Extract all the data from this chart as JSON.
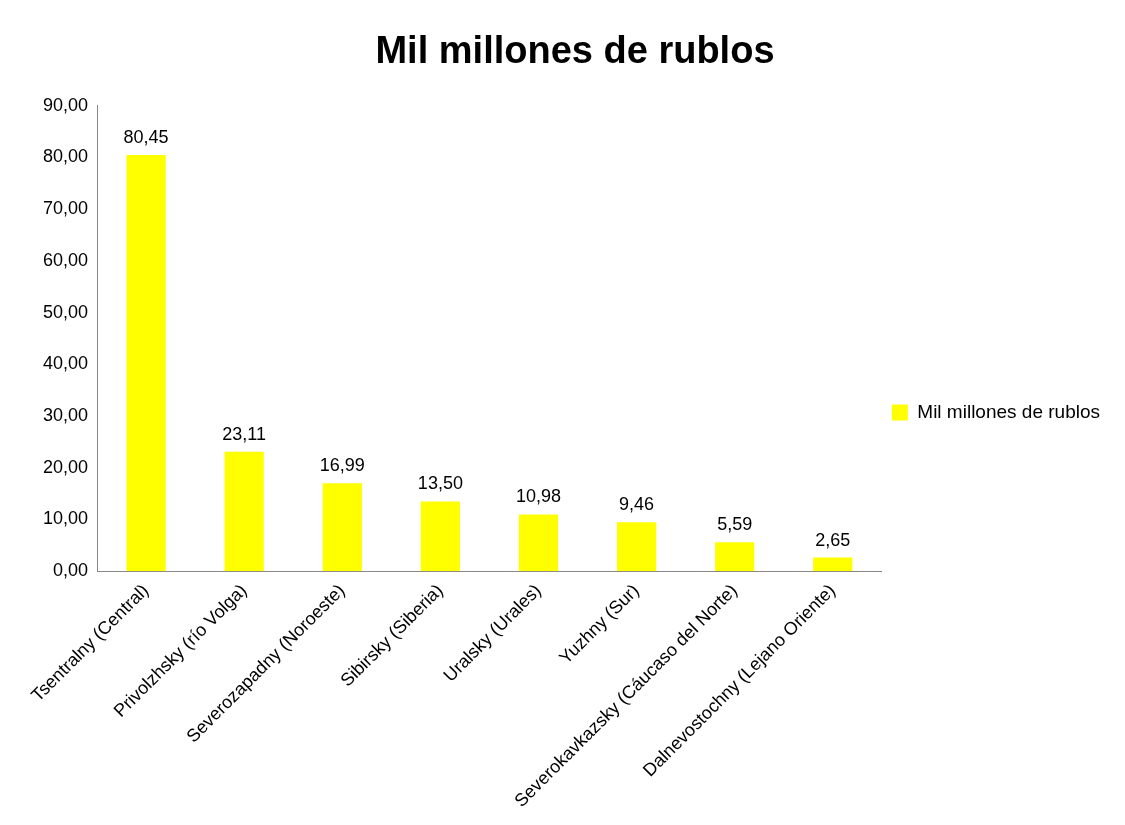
{
  "chart_data": {
    "type": "bar",
    "title": "Mil millones de rublos",
    "categories": [
      "Tsentralny (Central)",
      "Privolzhsky (río Volga)",
      "Severozapadny (Noroeste)",
      "Sibirsky (Siberia)",
      "Uralsky (Urales)",
      "Yuzhny (Sur)",
      "Severokavkazsky (Cáucaso del Norte)",
      "Dalnevostochny (Lejano Oriente)"
    ],
    "series": [
      {
        "name": "Mil millones de rublos",
        "color": "#ffff00",
        "values": [
          80.45,
          23.11,
          16.99,
          13.5,
          10.98,
          9.46,
          5.59,
          2.65
        ],
        "value_labels": [
          "80,45",
          "23,11",
          "16,99",
          "13,50",
          "10,98",
          "9,46",
          "5,59",
          "2,65"
        ]
      }
    ],
    "ylim": [
      0,
      90
    ],
    "yticks": [
      {
        "value": 0,
        "label": "0,00"
      },
      {
        "value": 10,
        "label": "10,00"
      },
      {
        "value": 20,
        "label": "20,00"
      },
      {
        "value": 30,
        "label": "30,00"
      },
      {
        "value": 40,
        "label": "40,00"
      },
      {
        "value": 50,
        "label": "50,00"
      },
      {
        "value": 60,
        "label": "60,00"
      },
      {
        "value": 70,
        "label": "70,00"
      },
      {
        "value": 80,
        "label": "80,00"
      },
      {
        "value": 90,
        "label": "90,00"
      }
    ],
    "grid": false,
    "legend": "right"
  }
}
